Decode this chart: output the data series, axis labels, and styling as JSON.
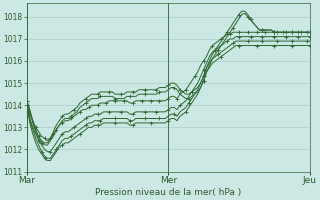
{
  "title": "Pression niveau de la mer( hPa )",
  "bg_color": "#cce8e4",
  "grid_color": "#aacccc",
  "line_color": "#2d6630",
  "ylim": [
    1011.0,
    1018.6
  ],
  "yticks": [
    1011,
    1012,
    1013,
    1014,
    1015,
    1016,
    1017,
    1018
  ],
  "xtick_labels": [
    "Mar",
    "Mer",
    "Jeu"
  ],
  "xtick_positions": [
    0,
    48,
    96
  ],
  "vline_positions": [
    0,
    48,
    96
  ],
  "n_points": 97,
  "series": [
    [
      1014.0,
      1013.6,
      1013.3,
      1013.0,
      1012.8,
      1012.6,
      1012.5,
      1012.4,
      1012.5,
      1012.7,
      1012.9,
      1013.1,
      1013.2,
      1013.3,
      1013.3,
      1013.4,
      1013.5,
      1013.6,
      1013.7,
      1013.8,
      1013.8,
      1013.9,
      1014.0,
      1014.0,
      1014.0,
      1014.1,
      1014.1,
      1014.1,
      1014.2,
      1014.2,
      1014.2,
      1014.2,
      1014.2,
      1014.2,
      1014.2,
      1014.1,
      1014.1,
      1014.2,
      1014.2,
      1014.2,
      1014.2,
      1014.2,
      1014.2,
      1014.2,
      1014.2,
      1014.2,
      1014.2,
      1014.2,
      1014.3,
      1014.4,
      1014.4,
      1014.3,
      1014.5,
      1014.6,
      1014.7,
      1014.9,
      1015.1,
      1015.3,
      1015.5,
      1015.8,
      1016.0,
      1016.2,
      1016.5,
      1016.7,
      1016.8,
      1016.9,
      1017.0,
      1017.1,
      1017.2,
      1017.2,
      1017.3,
      1017.3,
      1017.3,
      1017.3,
      1017.3,
      1017.3,
      1017.3,
      1017.3,
      1017.3,
      1017.3,
      1017.3,
      1017.3,
      1017.3,
      1017.3,
      1017.3,
      1017.3,
      1017.3,
      1017.3,
      1017.3,
      1017.3,
      1017.3,
      1017.3,
      1017.3,
      1017.3,
      1017.3,
      1017.3,
      1017.3
    ],
    [
      1014.0,
      1013.4,
      1013.0,
      1012.7,
      1012.4,
      1012.2,
      1012.0,
      1011.9,
      1011.9,
      1012.1,
      1012.3,
      1012.5,
      1012.7,
      1012.8,
      1012.8,
      1012.9,
      1013.0,
      1013.1,
      1013.2,
      1013.3,
      1013.4,
      1013.5,
      1013.5,
      1013.6,
      1013.6,
      1013.6,
      1013.7,
      1013.7,
      1013.7,
      1013.7,
      1013.7,
      1013.7,
      1013.7,
      1013.7,
      1013.7,
      1013.6,
      1013.6,
      1013.7,
      1013.7,
      1013.7,
      1013.7,
      1013.7,
      1013.7,
      1013.7,
      1013.7,
      1013.7,
      1013.7,
      1013.7,
      1013.8,
      1013.9,
      1013.9,
      1013.8,
      1014.0,
      1014.1,
      1014.2,
      1014.4,
      1014.6,
      1014.8,
      1015.0,
      1015.3,
      1015.6,
      1015.9,
      1016.2,
      1016.4,
      1016.5,
      1016.6,
      1016.7,
      1016.8,
      1016.9,
      1017.0,
      1017.0,
      1017.1,
      1017.1,
      1017.1,
      1017.1,
      1017.1,
      1017.1,
      1017.1,
      1017.1,
      1017.1,
      1017.1,
      1017.1,
      1017.1,
      1017.1,
      1017.1,
      1017.1,
      1017.1,
      1017.1,
      1017.1,
      1017.1,
      1017.1,
      1017.1,
      1017.1,
      1017.1,
      1017.1,
      1017.1,
      1017.1
    ],
    [
      1014.0,
      1013.3,
      1012.9,
      1012.5,
      1012.2,
      1011.9,
      1011.7,
      1011.6,
      1011.6,
      1011.8,
      1012.0,
      1012.2,
      1012.4,
      1012.5,
      1012.5,
      1012.6,
      1012.7,
      1012.8,
      1012.9,
      1013.0,
      1013.1,
      1013.2,
      1013.2,
      1013.3,
      1013.3,
      1013.3,
      1013.4,
      1013.4,
      1013.4,
      1013.4,
      1013.4,
      1013.4,
      1013.4,
      1013.4,
      1013.4,
      1013.3,
      1013.3,
      1013.4,
      1013.4,
      1013.4,
      1013.4,
      1013.4,
      1013.4,
      1013.4,
      1013.4,
      1013.4,
      1013.4,
      1013.4,
      1013.5,
      1013.6,
      1013.6,
      1013.5,
      1013.7,
      1013.8,
      1013.9,
      1014.1,
      1014.3,
      1014.5,
      1014.7,
      1015.0,
      1015.3,
      1015.7,
      1015.9,
      1016.1,
      1016.2,
      1016.3,
      1016.4,
      1016.5,
      1016.6,
      1016.7,
      1016.8,
      1016.9,
      1016.9,
      1016.9,
      1016.9,
      1016.9,
      1016.9,
      1016.9,
      1016.9,
      1016.9,
      1016.9,
      1016.9,
      1016.9,
      1016.9,
      1016.9,
      1016.9,
      1016.9,
      1016.9,
      1016.9,
      1016.9,
      1016.9,
      1016.9,
      1016.9,
      1016.9,
      1016.9,
      1016.9,
      1016.9
    ],
    [
      1014.0,
      1013.2,
      1012.7,
      1012.3,
      1012.0,
      1011.8,
      1011.6,
      1011.5,
      1011.5,
      1011.7,
      1011.9,
      1012.1,
      1012.2,
      1012.3,
      1012.3,
      1012.4,
      1012.5,
      1012.6,
      1012.7,
      1012.8,
      1012.9,
      1013.0,
      1013.0,
      1013.1,
      1013.1,
      1013.1,
      1013.2,
      1013.2,
      1013.2,
      1013.2,
      1013.2,
      1013.2,
      1013.2,
      1013.2,
      1013.2,
      1013.1,
      1013.1,
      1013.2,
      1013.2,
      1013.2,
      1013.2,
      1013.2,
      1013.2,
      1013.2,
      1013.2,
      1013.2,
      1013.2,
      1013.2,
      1013.3,
      1013.4,
      1013.4,
      1013.3,
      1013.5,
      1013.6,
      1013.7,
      1013.9,
      1014.1,
      1014.3,
      1014.5,
      1014.8,
      1015.1,
      1015.5,
      1015.7,
      1015.9,
      1016.0,
      1016.1,
      1016.2,
      1016.3,
      1016.4,
      1016.5,
      1016.6,
      1016.7,
      1016.7,
      1016.7,
      1016.7,
      1016.7,
      1016.7,
      1016.7,
      1016.7,
      1016.7,
      1016.7,
      1016.7,
      1016.7,
      1016.7,
      1016.7,
      1016.7,
      1016.7,
      1016.7,
      1016.7,
      1016.7,
      1016.7,
      1016.7,
      1016.7,
      1016.7,
      1016.7,
      1016.7,
      1016.7
    ],
    [
      1014.2,
      1013.7,
      1013.2,
      1012.8,
      1012.5,
      1012.3,
      1012.2,
      1012.2,
      1012.4,
      1012.6,
      1012.9,
      1013.1,
      1013.3,
      1013.4,
      1013.4,
      1013.5,
      1013.6,
      1013.7,
      1013.9,
      1014.0,
      1014.1,
      1014.2,
      1014.3,
      1014.3,
      1014.3,
      1014.4,
      1014.4,
      1014.4,
      1014.4,
      1014.4,
      1014.3,
      1014.3,
      1014.3,
      1014.3,
      1014.4,
      1014.4,
      1014.4,
      1014.4,
      1014.5,
      1014.5,
      1014.5,
      1014.5,
      1014.5,
      1014.5,
      1014.5,
      1014.6,
      1014.6,
      1014.6,
      1014.7,
      1014.8,
      1014.8,
      1014.7,
      1014.5,
      1014.4,
      1014.3,
      1014.3,
      1014.4,
      1014.5,
      1014.6,
      1014.8,
      1015.1,
      1015.5,
      1015.8,
      1016.1,
      1016.3,
      1016.5,
      1016.7,
      1016.9,
      1017.1,
      1017.3,
      1017.5,
      1017.7,
      1017.9,
      1018.1,
      1018.15,
      1018.0,
      1017.85,
      1017.7,
      1017.55,
      1017.4,
      1017.4,
      1017.4,
      1017.4,
      1017.4,
      1017.3,
      1017.3,
      1017.3,
      1017.3,
      1017.3,
      1017.3,
      1017.3,
      1017.3,
      1017.3,
      1017.3,
      1017.3,
      1017.3,
      1017.3
    ],
    [
      1014.2,
      1013.8,
      1013.3,
      1012.9,
      1012.6,
      1012.4,
      1012.3,
      1012.3,
      1012.5,
      1012.8,
      1013.1,
      1013.3,
      1013.5,
      1013.6,
      1013.6,
      1013.7,
      1013.8,
      1013.9,
      1014.1,
      1014.2,
      1014.3,
      1014.4,
      1014.5,
      1014.5,
      1014.5,
      1014.6,
      1014.6,
      1014.6,
      1014.6,
      1014.6,
      1014.5,
      1014.5,
      1014.5,
      1014.5,
      1014.6,
      1014.6,
      1014.6,
      1014.6,
      1014.7,
      1014.7,
      1014.7,
      1014.7,
      1014.7,
      1014.7,
      1014.7,
      1014.8,
      1014.8,
      1014.8,
      1014.9,
      1015.0,
      1015.0,
      1014.9,
      1014.7,
      1014.6,
      1014.5,
      1014.5,
      1014.6,
      1014.7,
      1014.8,
      1015.0,
      1015.3,
      1015.7,
      1016.0,
      1016.3,
      1016.5,
      1016.7,
      1016.9,
      1017.1,
      1017.3,
      1017.5,
      1017.7,
      1017.9,
      1018.1,
      1018.25,
      1018.25,
      1018.1,
      1017.9,
      1017.7,
      1017.55,
      1017.4,
      1017.4,
      1017.4,
      1017.4,
      1017.4,
      1017.3,
      1017.3,
      1017.3,
      1017.3,
      1017.3,
      1017.3,
      1017.3,
      1017.3,
      1017.3,
      1017.3,
      1017.3,
      1017.3,
      1017.3
    ]
  ]
}
